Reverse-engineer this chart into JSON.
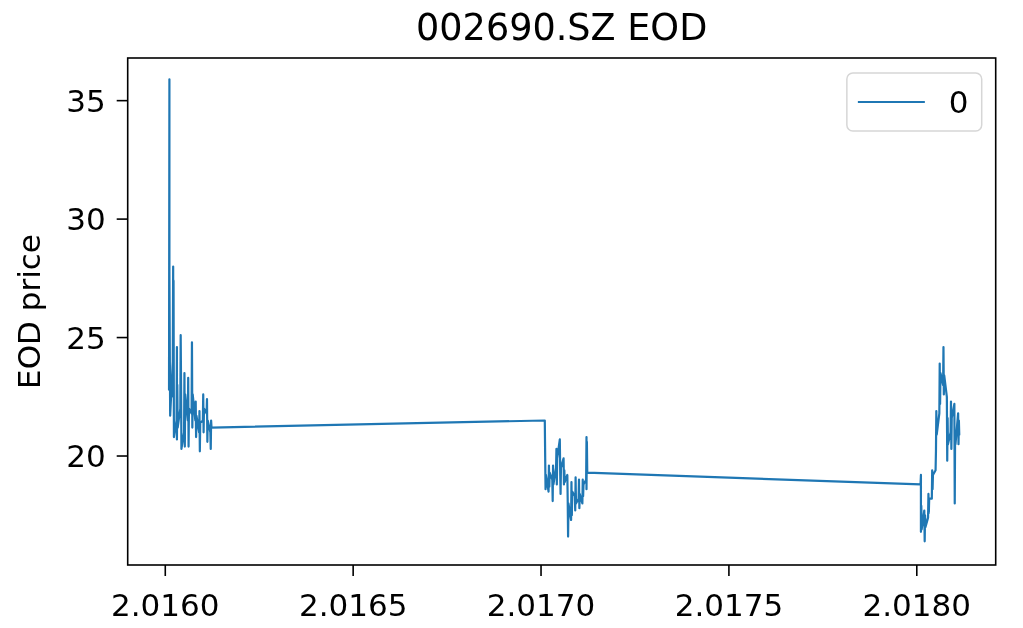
{
  "chart_data": {
    "type": "line",
    "title": "002690.SZ EOD",
    "ylabel": "EOD price",
    "xlim": [
      2.0159,
      2.01821
    ],
    "ylim": [
      15.4,
      36.8
    ],
    "xticks": [
      {
        "value": 2.016,
        "label": "2.0160"
      },
      {
        "value": 2.0165,
        "label": "2.0165"
      },
      {
        "value": 2.017,
        "label": "2.0170"
      },
      {
        "value": 2.0175,
        "label": "2.0175"
      },
      {
        "value": 2.018,
        "label": "2.0180"
      }
    ],
    "yticks": [
      20,
      25,
      30,
      35
    ],
    "legend": "top right",
    "series": [
      {
        "name": "0",
        "color": "#1f77b4",
        "x": [
          2.01601,
          2.016011,
          2.016011,
          2.016012,
          2.016013,
          2.01602,
          2.016021,
          2.016021,
          2.016022,
          2.016023,
          2.01603,
          2.016031,
          2.016031,
          2.016032,
          2.016033,
          2.01604,
          2.016041,
          2.016042,
          2.016043,
          2.01605,
          2.016051,
          2.016052,
          2.016053,
          2.01606,
          2.016061,
          2.016062,
          2.016063,
          2.01607,
          2.016071,
          2.016072,
          2.016073,
          2.01608,
          2.016081,
          2.016082,
          2.016083,
          2.01609,
          2.016091,
          2.016092,
          2.016093,
          2.0161,
          2.016101,
          2.016102,
          2.016103,
          2.01611,
          2.016111,
          2.016112,
          2.016113,
          2.01612,
          2.016121,
          2.016122,
          2.016123,
          2.01701,
          2.017011,
          2.017012,
          2.017013,
          2.01702,
          2.017021,
          2.017022,
          2.017023,
          2.01703,
          2.017031,
          2.017032,
          2.017033,
          2.01704,
          2.017041,
          2.017042,
          2.017043,
          2.01705,
          2.017051,
          2.017052,
          2.017053,
          2.01706,
          2.017061,
          2.017062,
          2.017063,
          2.01707,
          2.017071,
          2.017072,
          2.017073,
          2.01708,
          2.017081,
          2.017082,
          2.017083,
          2.01709,
          2.017091,
          2.017092,
          2.017093,
          2.0171,
          2.017101,
          2.017102,
          2.017103,
          2.01711,
          2.017111,
          2.017112,
          2.017113,
          2.01712,
          2.017121,
          2.017121,
          2.017122,
          2.017123,
          2.01801,
          2.018011,
          2.018011,
          2.018012,
          2.018013,
          2.01802,
          2.018021,
          2.018022,
          2.018023,
          2.01803,
          2.018031,
          2.018032,
          2.018033,
          2.01804,
          2.018041,
          2.018042,
          2.018043,
          2.01805,
          2.018051,
          2.018052,
          2.018053,
          2.01806,
          2.018061,
          2.018062,
          2.018063,
          2.01807,
          2.018071,
          2.018072,
          2.018073,
          2.01808,
          2.018081,
          2.018082,
          2.018083,
          2.01809,
          2.018091,
          2.018092,
          2.018093,
          2.0181,
          2.018101,
          2.018102,
          2.018103,
          2.01811,
          2.018111,
          2.018112,
          2.018113
        ],
        "values": [
          22.8,
          35.9,
          27.8,
          24.5,
          21.7,
          24.0,
          28.0,
          22.5,
          27.4,
          20.8,
          21.5,
          24.6,
          20.7,
          23.0,
          21.2,
          22.0,
          25.1,
          23.0,
          20.3,
          21.0,
          23.5,
          20.4,
          22.6,
          21.5,
          23.3,
          20.4,
          22.0,
          21.8,
          24.8,
          21.2,
          22.6,
          21.5,
          22.3,
          20.8,
          21.7,
          21.0,
          21.9,
          20.2,
          21.4,
          21.5,
          22.6,
          21.0,
          22.0,
          21.8,
          22.4,
          20.6,
          21.5,
          21.0,
          20.3,
          21.5,
          21.2,
          21.5,
          20.0,
          18.6,
          19.2,
          18.5,
          19.6,
          18.7,
          19.3,
          19.0,
          18.1,
          19.6,
          18.8,
          19.5,
          20.3,
          18.8,
          19.9,
          20.7,
          19.3,
          18.4,
          19.5,
          19.9,
          18.8,
          19.4,
          18.9,
          19.2,
          18.1,
          16.6,
          18.0,
          17.3,
          18.9,
          17.5,
          18.5,
          18.3,
          17.7,
          19.1,
          18.0,
          18.2,
          19.0,
          17.8,
          18.4,
          18.0,
          19.0,
          18.3,
          18.8,
          19.0,
          20.8,
          18.6,
          20.6,
          19.3,
          18.8,
          19.2,
          16.8,
          17.9,
          16.9,
          17.7,
          16.4,
          17.5,
          17.0,
          17.4,
          18.4,
          17.6,
          18.2,
          18.2,
          19.4,
          18.6,
          19.2,
          19.4,
          20.2,
          21.9,
          20.9,
          21.8,
          23.9,
          22.2,
          23.5,
          23.0,
          24.6,
          22.6,
          23.4,
          22.5,
          19.8,
          21.6,
          20.5,
          21.0,
          22.3,
          20.3,
          21.6,
          22.2,
          18.0,
          21.0,
          20.5,
          21.8,
          20.5,
          21.5,
          20.9
        ]
      }
    ]
  }
}
